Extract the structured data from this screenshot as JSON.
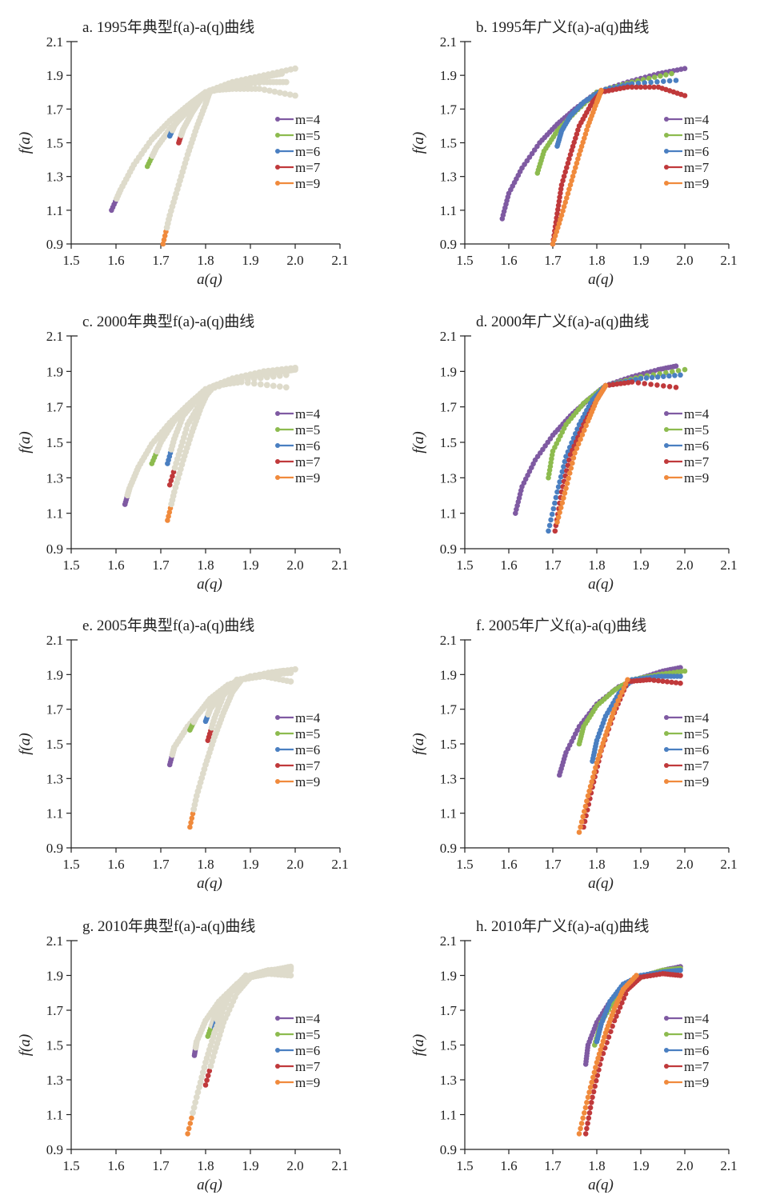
{
  "figure": {
    "colors": {
      "m=4": "#7f5aa2",
      "m=5": "#8dbb4f",
      "m=6": "#4a7fc1",
      "m=7": "#c0393b",
      "m=9": "#f08a3c",
      "typical_overlay": "#dedbcb"
    }
  },
  "chart_data": [
    {
      "panel": "a",
      "type": "scatter",
      "title": "a. 1995年典型f(a)-a(q)曲线",
      "xlabel": "a(q)",
      "ylabel": "f(a)",
      "xlim": [
        1.5,
        2.1
      ],
      "ylim": [
        0.9,
        2.1
      ],
      "xticks": [
        "1.5",
        "1.6",
        "1.7",
        "1.8",
        "1.9",
        "2.0",
        "2.1"
      ],
      "yticks": [
        "0.9",
        "1.1",
        "1.3",
        "1.5",
        "1.7",
        "1.9",
        "2.1"
      ],
      "legend_position": "right",
      "overlay": "typical",
      "series": [
        {
          "name": "m=4",
          "x": [
            1.59,
            1.61,
            1.64,
            1.68,
            1.72,
            1.76,
            1.8,
            1.86,
            1.93,
            2.0
          ],
          "y": [
            1.1,
            1.22,
            1.37,
            1.52,
            1.63,
            1.72,
            1.8,
            1.86,
            1.9,
            1.94
          ]
        },
        {
          "name": "m=5",
          "x": [
            1.67,
            1.69,
            1.72,
            1.75,
            1.78,
            1.81,
            1.87,
            1.93,
            1.97
          ],
          "y": [
            1.36,
            1.47,
            1.58,
            1.66,
            1.74,
            1.8,
            1.86,
            1.89,
            1.91
          ]
        },
        {
          "name": "m=6",
          "x": [
            1.72,
            1.73,
            1.75,
            1.77,
            1.8,
            1.86,
            1.93,
            1.98
          ],
          "y": [
            1.54,
            1.6,
            1.67,
            1.74,
            1.8,
            1.84,
            1.86,
            1.86
          ]
        },
        {
          "name": "m=7",
          "x": [
            1.74,
            1.75,
            1.77,
            1.79,
            1.81,
            1.86,
            1.92,
            2.0
          ],
          "y": [
            1.5,
            1.58,
            1.68,
            1.76,
            1.81,
            1.82,
            1.82,
            1.78
          ]
        },
        {
          "name": "m=9",
          "x": [
            1.705,
            1.72,
            1.74,
            1.76,
            1.78,
            1.8,
            1.81
          ],
          "y": [
            0.9,
            1.07,
            1.25,
            1.43,
            1.59,
            1.73,
            1.81
          ]
        }
      ]
    },
    {
      "panel": "b",
      "type": "scatter",
      "title": "b. 1995年广义f(a)-a(q)曲线",
      "xlabel": "a(q)",
      "ylabel": "f(a)",
      "xlim": [
        1.5,
        2.1
      ],
      "ylim": [
        0.9,
        2.1
      ],
      "xticks": [
        "1.5",
        "1.6",
        "1.7",
        "1.8",
        "1.9",
        "2.0",
        "2.1"
      ],
      "yticks": [
        "0.9",
        "1.1",
        "1.3",
        "1.5",
        "1.7",
        "1.9",
        "2.1"
      ],
      "legend_position": "right",
      "overlay": "none",
      "series": [
        {
          "name": "m=4",
          "x": [
            1.585,
            1.6,
            1.63,
            1.67,
            1.71,
            1.75,
            1.8,
            1.87,
            1.94,
            2.0
          ],
          "y": [
            1.05,
            1.2,
            1.35,
            1.5,
            1.61,
            1.7,
            1.8,
            1.86,
            1.91,
            1.94
          ]
        },
        {
          "name": "m=5",
          "x": [
            1.665,
            1.68,
            1.71,
            1.75,
            1.8,
            1.88,
            1.97
          ],
          "y": [
            1.32,
            1.45,
            1.57,
            1.68,
            1.8,
            1.86,
            1.91
          ]
        },
        {
          "name": "m=6",
          "x": [
            1.71,
            1.72,
            1.74,
            1.77,
            1.81,
            1.88,
            1.98
          ],
          "y": [
            1.48,
            1.57,
            1.66,
            1.74,
            1.81,
            1.85,
            1.87
          ]
        },
        {
          "name": "m=7",
          "x": [
            1.7,
            1.71,
            1.72,
            1.74,
            1.76,
            1.79,
            1.81,
            1.87,
            1.94,
            2.0
          ],
          "y": [
            0.9,
            1.08,
            1.25,
            1.43,
            1.6,
            1.74,
            1.8,
            1.83,
            1.83,
            1.78
          ]
        },
        {
          "name": "m=9",
          "x": [
            1.7,
            1.72,
            1.74,
            1.76,
            1.78,
            1.8,
            1.81
          ],
          "y": [
            0.9,
            1.07,
            1.25,
            1.43,
            1.6,
            1.74,
            1.81
          ]
        }
      ]
    },
    {
      "panel": "c",
      "type": "scatter",
      "title": "c. 2000年典型f(a)-a(q)曲线",
      "xlabel": "a(q)",
      "ylabel": "f(a)",
      "xlim": [
        1.5,
        2.1
      ],
      "ylim": [
        0.9,
        2.1
      ],
      "xticks": [
        "1.5",
        "1.6",
        "1.7",
        "1.8",
        "1.9",
        "2.0",
        "2.1"
      ],
      "yticks": [
        "0.9",
        "1.1",
        "1.3",
        "1.5",
        "1.7",
        "1.9",
        "2.1"
      ],
      "legend_position": "right",
      "overlay": "typical",
      "series": [
        {
          "name": "m=4",
          "x": [
            1.62,
            1.63,
            1.65,
            1.68,
            1.72,
            1.76,
            1.8,
            1.86,
            1.93,
            2.0
          ],
          "y": [
            1.15,
            1.24,
            1.36,
            1.49,
            1.61,
            1.71,
            1.8,
            1.86,
            1.9,
            1.92
          ]
        },
        {
          "name": "m=5",
          "x": [
            1.68,
            1.7,
            1.73,
            1.77,
            1.81,
            1.88,
            1.97,
            2.0
          ],
          "y": [
            1.38,
            1.5,
            1.62,
            1.73,
            1.8,
            1.86,
            1.9,
            1.91
          ]
        },
        {
          "name": "m=6",
          "x": [
            1.715,
            1.73,
            1.75,
            1.78,
            1.81,
            1.88,
            1.98
          ],
          "y": [
            1.38,
            1.52,
            1.65,
            1.74,
            1.81,
            1.85,
            1.88
          ]
        },
        {
          "name": "m=7",
          "x": [
            1.72,
            1.74,
            1.76,
            1.79,
            1.82,
            1.88,
            1.98
          ],
          "y": [
            1.26,
            1.43,
            1.6,
            1.73,
            1.82,
            1.84,
            1.81
          ]
        },
        {
          "name": "m=9",
          "x": [
            1.715,
            1.73,
            1.75,
            1.77,
            1.79,
            1.81
          ],
          "y": [
            1.06,
            1.22,
            1.4,
            1.56,
            1.7,
            1.81
          ]
        }
      ]
    },
    {
      "panel": "d",
      "type": "scatter",
      "title": "d. 2000年广义f(a)-a(q)曲线",
      "xlabel": "a(q)",
      "ylabel": "f(a)",
      "xlim": [
        1.5,
        2.1
      ],
      "ylim": [
        0.9,
        2.1
      ],
      "xticks": [
        "1.5",
        "1.6",
        "1.7",
        "1.8",
        "1.9",
        "2.0",
        "2.1"
      ],
      "yticks": [
        "0.9",
        "1.1",
        "1.3",
        "1.5",
        "1.7",
        "1.9",
        "2.1"
      ],
      "legend_position": "right",
      "overlay": "none",
      "series": [
        {
          "name": "m=4",
          "x": [
            1.615,
            1.63,
            1.66,
            1.7,
            1.74,
            1.78,
            1.82,
            1.88,
            1.94,
            1.98
          ],
          "y": [
            1.1,
            1.25,
            1.4,
            1.54,
            1.65,
            1.74,
            1.82,
            1.87,
            1.91,
            1.93
          ]
        },
        {
          "name": "m=5",
          "x": [
            1.69,
            1.7,
            1.73,
            1.77,
            1.82,
            1.9,
            2.0
          ],
          "y": [
            1.3,
            1.45,
            1.6,
            1.72,
            1.82,
            1.87,
            1.91
          ]
        },
        {
          "name": "m=6",
          "x": [
            1.69,
            1.71,
            1.73,
            1.76,
            1.79,
            1.82,
            1.9,
            1.99
          ],
          "y": [
            1.0,
            1.22,
            1.42,
            1.6,
            1.74,
            1.82,
            1.86,
            1.88
          ]
        },
        {
          "name": "m=7",
          "x": [
            1.705,
            1.72,
            1.74,
            1.77,
            1.8,
            1.82,
            1.88,
            1.98
          ],
          "y": [
            1.0,
            1.22,
            1.43,
            1.6,
            1.74,
            1.82,
            1.84,
            1.81
          ]
        },
        {
          "name": "m=9",
          "x": [
            1.71,
            1.73,
            1.75,
            1.78,
            1.8,
            1.82
          ],
          "y": [
            1.05,
            1.24,
            1.44,
            1.62,
            1.74,
            1.82
          ]
        }
      ]
    },
    {
      "panel": "e",
      "type": "scatter",
      "title": "e. 2005年典型f(a)-a(q)曲线",
      "xlabel": "a(q)",
      "ylabel": "f(a)",
      "xlim": [
        1.5,
        2.1
      ],
      "ylim": [
        0.9,
        2.1
      ],
      "xticks": [
        "1.5",
        "1.6",
        "1.7",
        "1.8",
        "1.9",
        "2.0",
        "2.1"
      ],
      "yticks": [
        "0.9",
        "1.1",
        "1.3",
        "1.5",
        "1.7",
        "1.9",
        "2.1"
      ],
      "legend_position": "right",
      "overlay": "typical",
      "series": [
        {
          "name": "m=4",
          "x": [
            1.72,
            1.73,
            1.76,
            1.8,
            1.84,
            1.88,
            1.94,
            2.0
          ],
          "y": [
            1.38,
            1.48,
            1.6,
            1.72,
            1.81,
            1.87,
            1.91,
            1.93
          ]
        },
        {
          "name": "m=5",
          "x": [
            1.765,
            1.78,
            1.81,
            1.85,
            1.9,
            1.97
          ],
          "y": [
            1.58,
            1.66,
            1.76,
            1.84,
            1.89,
            1.92
          ]
        },
        {
          "name": "m=6",
          "x": [
            1.8,
            1.81,
            1.84,
            1.88,
            1.94,
            1.99
          ],
          "y": [
            1.63,
            1.7,
            1.8,
            1.87,
            1.9,
            1.91
          ]
        },
        {
          "name": "m=7",
          "x": [
            1.805,
            1.82,
            1.84,
            1.87,
            1.93,
            1.99
          ],
          "y": [
            1.52,
            1.65,
            1.78,
            1.87,
            1.89,
            1.86
          ]
        },
        {
          "name": "m=9",
          "x": [
            1.765,
            1.78,
            1.8,
            1.82,
            1.84,
            1.86,
            1.88
          ],
          "y": [
            1.02,
            1.2,
            1.38,
            1.54,
            1.68,
            1.8,
            1.87
          ]
        }
      ]
    },
    {
      "panel": "f",
      "type": "scatter",
      "title": "f. 2005年广义f(a)-a(q)曲线",
      "xlabel": "a(q)",
      "ylabel": "f(a)",
      "xlim": [
        1.5,
        2.1
      ],
      "ylim": [
        0.9,
        2.1
      ],
      "xticks": [
        "1.5",
        "1.6",
        "1.7",
        "1.8",
        "1.9",
        "2.0",
        "2.1"
      ],
      "yticks": [
        "0.9",
        "1.1",
        "1.3",
        "1.5",
        "1.7",
        "1.9",
        "2.1"
      ],
      "legend_position": "right",
      "overlay": "none",
      "series": [
        {
          "name": "m=4",
          "x": [
            1.715,
            1.73,
            1.76,
            1.8,
            1.85,
            1.9,
            1.95,
            1.99
          ],
          "y": [
            1.32,
            1.45,
            1.6,
            1.73,
            1.83,
            1.88,
            1.92,
            1.94
          ]
        },
        {
          "name": "m=5",
          "x": [
            1.76,
            1.77,
            1.8,
            1.84,
            1.88,
            1.94,
            2.0
          ],
          "y": [
            1.5,
            1.6,
            1.72,
            1.81,
            1.87,
            1.9,
            1.92
          ]
        },
        {
          "name": "m=6",
          "x": [
            1.79,
            1.8,
            1.82,
            1.85,
            1.88,
            1.94,
            1.99
          ],
          "y": [
            1.4,
            1.52,
            1.66,
            1.79,
            1.87,
            1.89,
            1.89
          ]
        },
        {
          "name": "m=7",
          "x": [
            1.77,
            1.79,
            1.81,
            1.84,
            1.87,
            1.92,
            1.99
          ],
          "y": [
            1.02,
            1.25,
            1.46,
            1.68,
            1.86,
            1.87,
            1.85
          ]
        },
        {
          "name": "m=9",
          "x": [
            1.76,
            1.78,
            1.8,
            1.82,
            1.84,
            1.87
          ],
          "y": [
            0.99,
            1.2,
            1.39,
            1.55,
            1.7,
            1.87
          ]
        }
      ]
    },
    {
      "panel": "g",
      "type": "scatter",
      "title": "g. 2010年典型f(a)-a(q)曲线",
      "xlabel": "a(q)",
      "ylabel": "f(a)",
      "xlim": [
        1.5,
        2.1
      ],
      "ylim": [
        0.9,
        2.1
      ],
      "xticks": [
        "1.5",
        "1.6",
        "1.7",
        "1.8",
        "1.9",
        "2.0",
        "2.1"
      ],
      "yticks": [
        "0.9",
        "1.1",
        "1.3",
        "1.5",
        "1.7",
        "1.9",
        "2.1"
      ],
      "legend_position": "right",
      "overlay": "typical",
      "series": [
        {
          "name": "m=4",
          "x": [
            1.775,
            1.78,
            1.8,
            1.83,
            1.87,
            1.91,
            1.95,
            1.99
          ],
          "y": [
            1.44,
            1.52,
            1.64,
            1.75,
            1.85,
            1.9,
            1.93,
            1.95
          ]
        },
        {
          "name": "m=5",
          "x": [
            1.805,
            1.82,
            1.84,
            1.87,
            1.9,
            1.94,
            1.99
          ],
          "y": [
            1.55,
            1.66,
            1.77,
            1.85,
            1.9,
            1.93,
            1.94
          ]
        },
        {
          "name": "m=6",
          "x": [
            1.82,
            1.83,
            1.85,
            1.88,
            1.92,
            1.96,
            1.99
          ],
          "y": [
            1.6,
            1.68,
            1.79,
            1.87,
            1.91,
            1.92,
            1.93
          ]
        },
        {
          "name": "m=7",
          "x": [
            1.8,
            1.82,
            1.84,
            1.87,
            1.9,
            1.94,
            1.99
          ],
          "y": [
            1.27,
            1.46,
            1.63,
            1.8,
            1.89,
            1.91,
            1.9
          ]
        },
        {
          "name": "m=9",
          "x": [
            1.76,
            1.78,
            1.8,
            1.82,
            1.84,
            1.86,
            1.89
          ],
          "y": [
            0.99,
            1.2,
            1.4,
            1.57,
            1.71,
            1.82,
            1.9
          ]
        }
      ]
    },
    {
      "panel": "h",
      "type": "scatter",
      "title": "h. 2010年广义f(a)-a(q)曲线",
      "xlabel": "a(q)",
      "ylabel": "f(a)",
      "xlim": [
        1.5,
        2.1
      ],
      "ylim": [
        0.9,
        2.1
      ],
      "xticks": [
        "1.5",
        "1.6",
        "1.7",
        "1.8",
        "1.9",
        "2.0",
        "2.1"
      ],
      "yticks": [
        "0.9",
        "1.1",
        "1.3",
        "1.5",
        "1.7",
        "1.9",
        "2.1"
      ],
      "legend_position": "right",
      "overlay": "none",
      "series": [
        {
          "name": "m=4",
          "x": [
            1.775,
            1.78,
            1.8,
            1.83,
            1.87,
            1.91,
            1.95,
            1.99
          ],
          "y": [
            1.39,
            1.5,
            1.63,
            1.75,
            1.85,
            1.9,
            1.93,
            1.95
          ]
        },
        {
          "name": "m=5",
          "x": [
            1.795,
            1.81,
            1.84,
            1.87,
            1.91,
            1.95,
            1.99
          ],
          "y": [
            1.5,
            1.63,
            1.76,
            1.85,
            1.9,
            1.93,
            1.94
          ]
        },
        {
          "name": "m=6",
          "x": [
            1.8,
            1.81,
            1.83,
            1.86,
            1.9,
            1.95,
            1.99
          ],
          "y": [
            1.52,
            1.62,
            1.75,
            1.85,
            1.9,
            1.92,
            1.93
          ]
        },
        {
          "name": "m=7",
          "x": [
            1.775,
            1.79,
            1.81,
            1.84,
            1.87,
            1.9,
            1.95,
            1.99
          ],
          "y": [
            0.99,
            1.2,
            1.42,
            1.64,
            1.82,
            1.89,
            1.91,
            1.9
          ]
        },
        {
          "name": "m=9",
          "x": [
            1.76,
            1.78,
            1.8,
            1.82,
            1.84,
            1.86,
            1.89
          ],
          "y": [
            0.99,
            1.2,
            1.4,
            1.57,
            1.71,
            1.82,
            1.9
          ]
        }
      ]
    }
  ]
}
